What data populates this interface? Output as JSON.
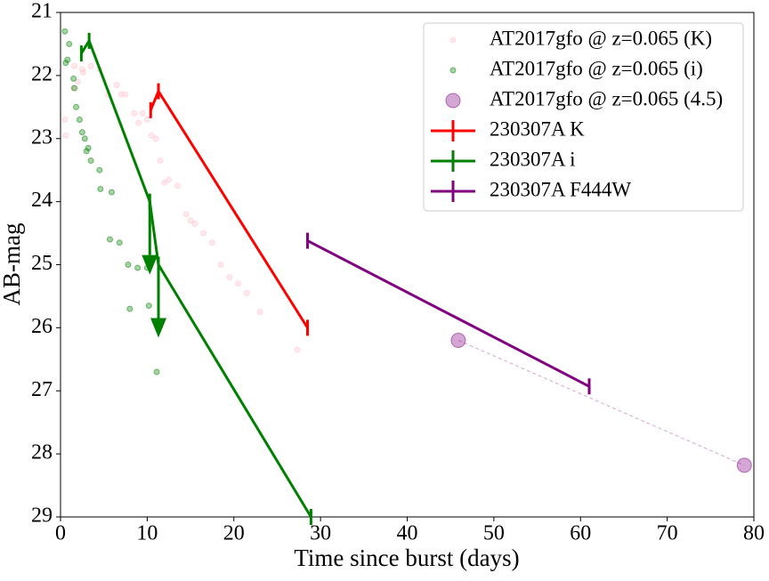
{
  "chart_data": {
    "type": "scatter",
    "x_label": "Time since burst (days)",
    "y_label": "AB-mag",
    "xlim": [
      0,
      80
    ],
    "ylim": [
      29,
      21
    ],
    "xticks": [
      0,
      10,
      20,
      30,
      40,
      50,
      60,
      70,
      80
    ],
    "yticks": [
      21,
      22,
      23,
      24,
      25,
      26,
      27,
      28,
      29
    ],
    "y_inverted": true,
    "legend": "upper right",
    "series": [
      {
        "name": "AT2017gfo @ z=0.065 (K)",
        "color": "#ffc0cb",
        "mode": "markers",
        "size": 3,
        "x": [
          0.5,
          0.6,
          1.5,
          1.6,
          2.0,
          2.5,
          2.6,
          3.5,
          4.5,
          5.5,
          6.5,
          7.0,
          7.5,
          8.5,
          9.0,
          9.5,
          10.0,
          10.5,
          11.0,
          11.5,
          12.0,
          12.5,
          13.5,
          14.5,
          15.0,
          15.5,
          16.5,
          17.5,
          18.5,
          19.5,
          20.5,
          21.5,
          23.0,
          27.3
        ],
        "values": [
          22.7,
          22.95,
          22.2,
          21.85,
          22.1,
          21.9,
          21.95,
          21.85,
          21.9,
          22.3,
          22.15,
          22.3,
          22.3,
          22.6,
          22.75,
          22.6,
          22.7,
          22.95,
          23.0,
          23.35,
          23.7,
          23.65,
          23.75,
          24.2,
          24.3,
          24.35,
          24.5,
          24.65,
          25.0,
          25.2,
          25.3,
          25.45,
          25.75,
          26.35
        ]
      },
      {
        "name": "AT2017gfo @ z=0.065 (i)",
        "color": "#008000",
        "mode": "markers",
        "size": 3,
        "x": [
          0.5,
          0.6,
          0.8,
          1.0,
          1.5,
          1.6,
          1.8,
          2.2,
          2.5,
          2.8,
          3.0,
          3.2,
          3.5,
          4.5,
          4.6,
          5.7,
          5.9,
          6.8,
          7.8,
          8.0,
          8.9,
          10.0,
          10.2,
          11.1
        ],
        "values": [
          21.3,
          21.8,
          21.75,
          21.5,
          22.05,
          22.2,
          22.5,
          22.7,
          22.9,
          23.0,
          23.2,
          23.15,
          23.35,
          23.5,
          23.8,
          24.6,
          23.85,
          24.65,
          25.0,
          25.7,
          25.05,
          25.05,
          25.65,
          26.7
        ]
      },
      {
        "name": "AT2017gfo @ z=0.065 (4.5)",
        "color": "#800080",
        "mode": "markers",
        "size": 8,
        "dashed_link": true,
        "x": [
          45.9,
          78.9
        ],
        "values": [
          26.2,
          28.18
        ]
      },
      {
        "name": "230307A K",
        "color": "#ff0000",
        "mode": "line",
        "x": [
          10.4,
          11.3,
          28.5
        ],
        "values": [
          22.55,
          22.25,
          26.0
        ]
      },
      {
        "name": "230307A i",
        "color": "#008000",
        "mode": "line",
        "x": [
          2.4,
          3.3,
          10.3,
          11.3,
          28.9
        ],
        "values": [
          21.65,
          21.45,
          24.0,
          25.0,
          29.0
        ],
        "upper_limits": [
          false,
          false,
          true,
          true,
          false
        ]
      },
      {
        "name": "230307A F444W",
        "color": "#800080",
        "mode": "line",
        "x": [
          28.5,
          61.0
        ],
        "values": [
          24.62,
          26.93
        ]
      }
    ]
  }
}
